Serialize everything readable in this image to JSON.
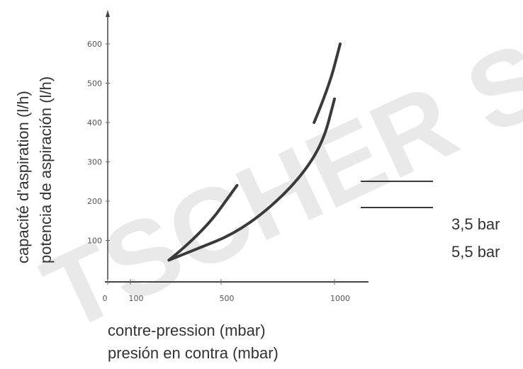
{
  "watermark": "TSCHER SA",
  "chart_data": {
    "type": "line",
    "title": "",
    "xlabel": [
      "contre-pression (mbar)",
      "presión en contra (mbar)"
    ],
    "ylabel": [
      "capacité d'aspiration (l/h)",
      "potencia de aspiración (l/h)"
    ],
    "xlim": [
      0,
      1100
    ],
    "ylim": [
      0,
      650
    ],
    "x_ticks": [
      0,
      100,
      500,
      1000
    ],
    "y_ticks": [
      100,
      200,
      300,
      400,
      500,
      600
    ],
    "x_tick_labels": [
      "0",
      "100",
      "500",
      "1000"
    ],
    "y_tick_labels": [
      "100",
      "200",
      "300",
      "400",
      "500",
      "600"
    ],
    "grid": false,
    "legend_position": "right",
    "series": [
      {
        "name": "3,5 bar",
        "color": "#3a3a3a",
        "segments": [
          [
            [
              270,
              50
            ],
            [
              420,
              120
            ],
            [
              570,
              240
            ]
          ],
          [
            [
              910,
              400
            ],
            [
              975,
              490
            ],
            [
              1025,
              600
            ]
          ]
        ]
      },
      {
        "name": "5,5 bar",
        "color": "#3a3a3a",
        "segments": [
          [
            [
              270,
              50
            ],
            [
              400,
              80
            ],
            [
              550,
              115
            ],
            [
              700,
              175
            ],
            [
              850,
              260
            ],
            [
              950,
              350
            ],
            [
              1000,
              460
            ]
          ]
        ]
      }
    ]
  }
}
